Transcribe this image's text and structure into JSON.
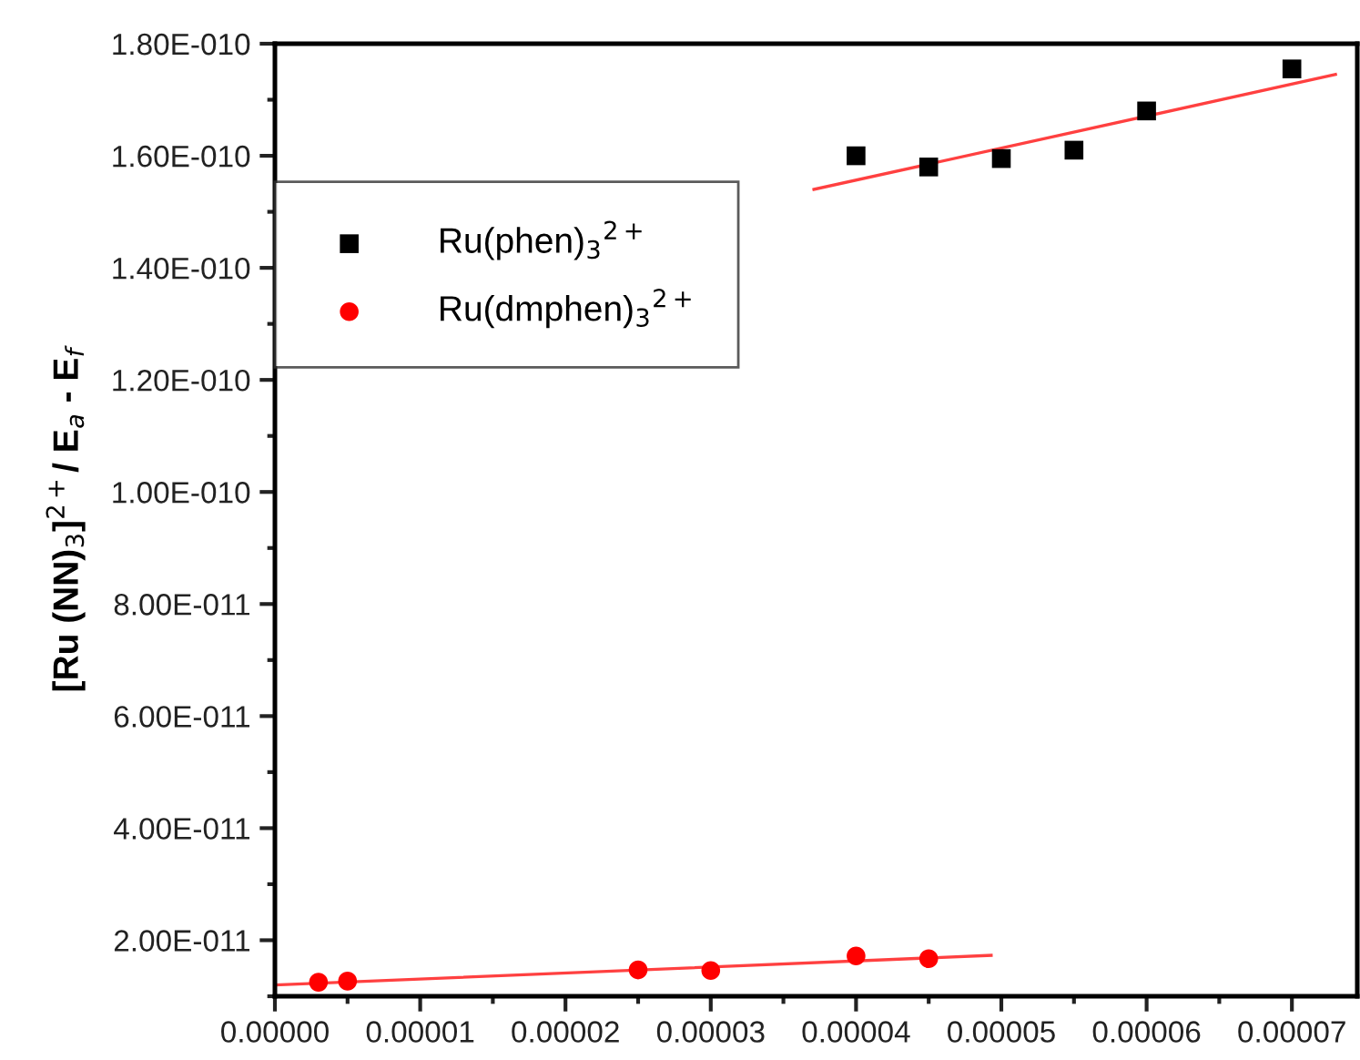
{
  "chart_data": {
    "type": "scatter",
    "ylabel": "[Ru (NN)$_{3}$]$^{2+}$/ E$_{a}$ - E$_{f}$",
    "xlim": [
      0,
      7.45e-05
    ],
    "ylim": [
      1e-11,
      1.8e-10
    ],
    "xticks": [
      {
        "value": 0,
        "label": "0.00000"
      },
      {
        "value": 1e-05,
        "label": "0.00001"
      },
      {
        "value": 2e-05,
        "label": "0.00002"
      },
      {
        "value": 3e-05,
        "label": "0.00003"
      },
      {
        "value": 4e-05,
        "label": "0.00004"
      },
      {
        "value": 5e-05,
        "label": "0.00005"
      },
      {
        "value": 6e-05,
        "label": "0.00006"
      },
      {
        "value": 7e-05,
        "label": "0.00007"
      }
    ],
    "yticks": [
      {
        "value": 2e-11,
        "label": "2.00E-011"
      },
      {
        "value": 4e-11,
        "label": "4.00E-011"
      },
      {
        "value": 6e-11,
        "label": "6.00E-011"
      },
      {
        "value": 8e-11,
        "label": "8.00E-011"
      },
      {
        "value": 1e-10,
        "label": "1.00E-010"
      },
      {
        "value": 1.2e-10,
        "label": "1.20E-010"
      },
      {
        "value": 1.4e-10,
        "label": "1.40E-010"
      },
      {
        "value": 1.6e-10,
        "label": "1.60E-010"
      },
      {
        "value": 1.8e-10,
        "label": "1.80E-010"
      }
    ],
    "grid": false,
    "legend": "top left",
    "series": [
      {
        "name": "Ru(phen)$_{3}$$^{2+}$",
        "marker": "square",
        "color": "#000000",
        "x": [
          4e-05,
          4.5e-05,
          5e-05,
          5.5e-05,
          6e-05,
          7e-05
        ],
        "values": [
          1.6e-10,
          1.58e-10,
          1.595e-10,
          1.61e-10,
          1.68e-10,
          1.755e-10
        ]
      },
      {
        "name": "Ru(dmphen)$_{3}$$^{2+}$",
        "marker": "circle",
        "color": "#ff0000",
        "x": [
          3e-06,
          5e-06,
          2.5e-05,
          3e-05,
          4e-05,
          4.5e-05
        ],
        "values": [
          1.25e-11,
          1.27e-11,
          1.47e-11,
          1.46e-11,
          1.72e-11,
          1.67e-11
        ]
      },
      {
        "type": "line",
        "marker": "none",
        "line_style": "solid",
        "color": "#ff4040",
        "x": [
          3.71e-05,
          7.3e-05
        ],
        "values": [
          1.54e-10,
          1.745e-10
        ]
      },
      {
        "type": "line",
        "marker": "none",
        "line_style": "solid",
        "color": "#ff4040",
        "x": [
          0,
          4.93e-05
        ],
        "values": [
          1.2e-11,
          1.73e-11
        ]
      }
    ]
  }
}
